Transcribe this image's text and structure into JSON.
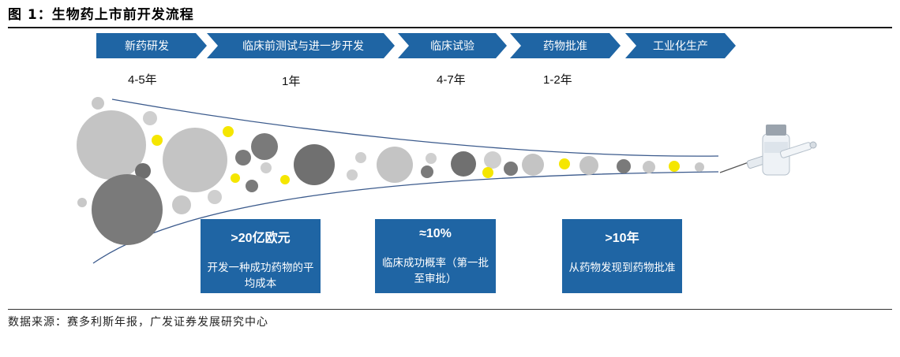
{
  "figure": {
    "title": "图 1：生物药上市前开发流程",
    "source": "数据来源：赛多利斯年报，广发证券发展研究中心"
  },
  "process_steps": [
    {
      "label": "新药研发",
      "duration": "4-5年"
    },
    {
      "label": "临床前测试与进一步开发",
      "duration": "1年"
    },
    {
      "label": "临床试验",
      "duration": "4-7年"
    },
    {
      "label": "药物批准",
      "duration": "1-2年"
    },
    {
      "label": "工业化生产",
      "duration": ""
    }
  ],
  "callouts": [
    {
      "headline": ">20亿欧元",
      "detail": "开发一种成功药物的平均成本"
    },
    {
      "headline": "≈10%",
      "detail": "临床成功概率（第一批至审批）"
    },
    {
      "headline": ">10年",
      "detail": "从药物发现到药物批准"
    }
  ],
  "colors": {
    "arrow_blue": "#1f65a4",
    "funnel_line": "#3b5a8c",
    "circle_light": "#c4c4c4",
    "circle_dark": "#7a7a7a",
    "circle_yellow": "#f5e600"
  },
  "icons": {
    "end_product": "vial-syringe-icon"
  }
}
